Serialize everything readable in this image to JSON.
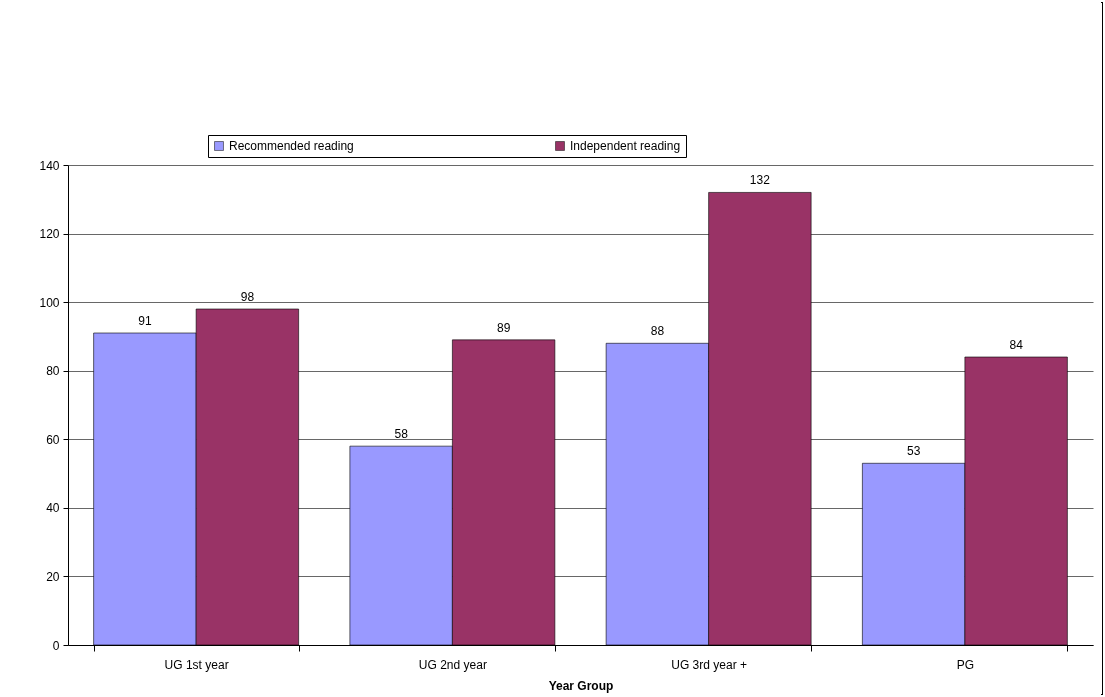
{
  "chart_data": {
    "type": "bar",
    "xlabel": "Year Group",
    "categories": [
      "UG 1st year",
      "UG 2nd year",
      "UG 3rd year +",
      "PG"
    ],
    "series": [
      {
        "name": "Recommended reading",
        "color": "#9999ff",
        "values": [
          91,
          58,
          88,
          53
        ]
      },
      {
        "name": "Independent reading",
        "color": "#993366",
        "values": [
          98,
          89,
          132,
          84
        ]
      }
    ],
    "ylim": [
      0,
      140
    ],
    "yticks": [
      0,
      20,
      40,
      60,
      80,
      100,
      120,
      140
    ],
    "grid": "y",
    "legend": "top",
    "data_labels": true
  }
}
